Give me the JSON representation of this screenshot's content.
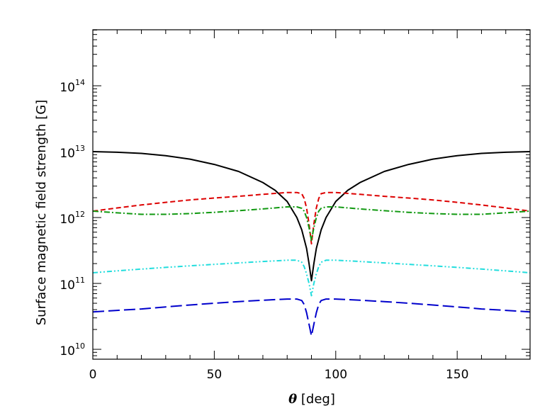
{
  "chart_data": {
    "type": "line",
    "title": "",
    "xlabel_symbol": "θ",
    "xlabel_unit": "[deg]",
    "ylabel": "Surface magnetic field strength [G]",
    "xlim": [
      0,
      180
    ],
    "ylim_log10": [
      9.85,
      14.85
    ],
    "yscale": "log",
    "xticks": [
      {
        "value": 0,
        "label": "0"
      },
      {
        "value": 50,
        "label": "50"
      },
      {
        "value": 100,
        "label": "100"
      },
      {
        "value": 150,
        "label": "150"
      }
    ],
    "yticks": [
      {
        "exp": 10,
        "base": "10",
        "sup": "10"
      },
      {
        "exp": 11,
        "base": "10",
        "sup": "11"
      },
      {
        "exp": 12,
        "base": "10",
        "sup": "12"
      },
      {
        "exp": 13,
        "base": "10",
        "sup": "13"
      },
      {
        "exp": 14,
        "base": "10",
        "sup": "14"
      }
    ],
    "series": [
      {
        "name": "black-solid",
        "color": "#000000",
        "dash": "",
        "x": [
          0,
          10,
          20,
          30,
          40,
          50,
          60,
          70,
          75,
          80,
          84,
          86,
          88,
          89,
          90
        ],
        "y": [
          10000000000000.0,
          9800000000000.0,
          9400000000000.0,
          8700000000000.0,
          7700000000000.0,
          6400000000000.0,
          5000000000000.0,
          3400000000000.0,
          2600000000000.0,
          1750000000000.0,
          1000000000000.0,
          650000000000.0,
          340000000000.0,
          200000000000.0,
          110000000000.0
        ]
      },
      {
        "name": "red-dashed",
        "color": "#dd0000",
        "dash": "7,4",
        "x": [
          0,
          10,
          20,
          30,
          40,
          50,
          60,
          70,
          80,
          84,
          86,
          87,
          88,
          89,
          90
        ],
        "y": [
          1250000000000.0,
          1400000000000.0,
          1550000000000.0,
          1700000000000.0,
          1850000000000.0,
          1980000000000.0,
          2100000000000.0,
          2250000000000.0,
          2400000000000.0,
          2400000000000.0,
          2300000000000.0,
          1950000000000.0,
          1400000000000.0,
          800000000000.0,
          400000000000.0
        ]
      },
      {
        "name": "green-dash-dot",
        "color": "#119911",
        "dash": "8,3,2,3",
        "x": [
          0,
          10,
          20,
          30,
          40,
          50,
          60,
          70,
          80,
          84,
          86,
          87,
          88,
          89,
          90
        ],
        "y": [
          1250000000000.0,
          1180000000000.0,
          1120000000000.0,
          1120000000000.0,
          1150000000000.0,
          1200000000000.0,
          1270000000000.0,
          1350000000000.0,
          1450000000000.0,
          1450000000000.0,
          1380000000000.0,
          1250000000000.0,
          1000000000000.0,
          700000000000.0,
          450000000000.0
        ]
      },
      {
        "name": "cyan-dash-dot-dot",
        "color": "#22dddd",
        "dash": "7,3,2,3,2,3",
        "x": [
          0,
          10,
          20,
          30,
          40,
          50,
          60,
          70,
          80,
          84,
          86,
          87,
          88,
          89,
          90
        ],
        "y": [
          145000000000.0,
          155000000000.0,
          165000000000.0,
          175000000000.0,
          185000000000.0,
          195000000000.0,
          205000000000.0,
          215000000000.0,
          225000000000.0,
          225000000000.0,
          210000000000.0,
          180000000000.0,
          140000000000.0,
          100000000000.0,
          65000000000.0
        ]
      },
      {
        "name": "blue-long-dash",
        "color": "#0000cc",
        "dash": "16,6",
        "x": [
          0,
          10,
          20,
          30,
          40,
          50,
          60,
          70,
          80,
          84,
          86,
          87,
          88,
          89,
          90
        ],
        "y": [
          37000000000.0,
          39000000000.0,
          41000000000.0,
          44000000000.0,
          47000000000.0,
          50000000000.0,
          53000000000.0,
          55500000000.0,
          58000000000.0,
          58000000000.0,
          55000000000.0,
          48000000000.0,
          36000000000.0,
          24000000000.0,
          16000000000.0
        ]
      }
    ]
  }
}
